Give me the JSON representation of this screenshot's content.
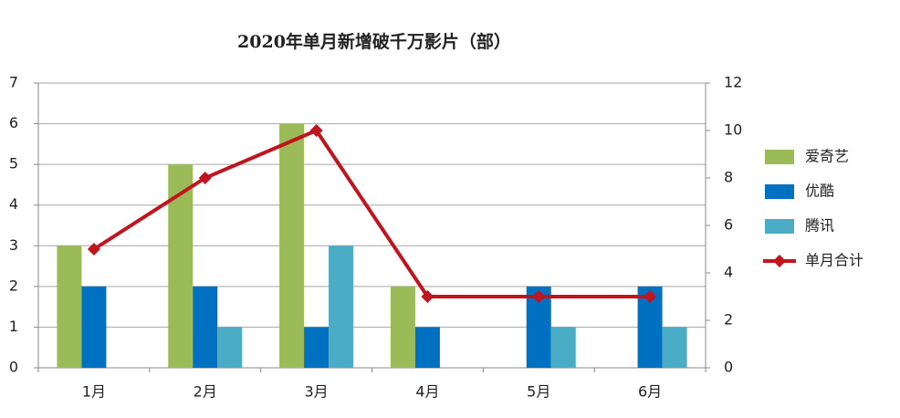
{
  "chart_data": {
    "type": "bar",
    "title": "2020年单月新增破千万影片（部）",
    "categories": [
      "1月",
      "2月",
      "3月",
      "4月",
      "5月",
      "6月"
    ],
    "series": [
      {
        "name": "爱奇艺",
        "color": "#9bbb59",
        "values": [
          3,
          5,
          6,
          2,
          0,
          0
        ]
      },
      {
        "name": "优酷",
        "color": "#0070c0",
        "values": [
          2,
          2,
          1,
          1,
          2,
          2
        ]
      },
      {
        "name": "腾讯",
        "color": "#4bacc6",
        "values": [
          0,
          1,
          3,
          0,
          1,
          1
        ]
      },
      {
        "name": "单月合计",
        "color": "#c0151e",
        "type": "line",
        "axis": "y2",
        "values": [
          5,
          8,
          10,
          3,
          3,
          3
        ]
      }
    ],
    "ylim": [
      0,
      7
    ],
    "yticks": [
      0,
      1,
      2,
      3,
      4,
      5,
      6,
      7
    ],
    "y2lim": [
      0,
      12
    ],
    "y2ticks": [
      0,
      2,
      4,
      6,
      8,
      10,
      12
    ],
    "grid": true,
    "legend": "right"
  }
}
